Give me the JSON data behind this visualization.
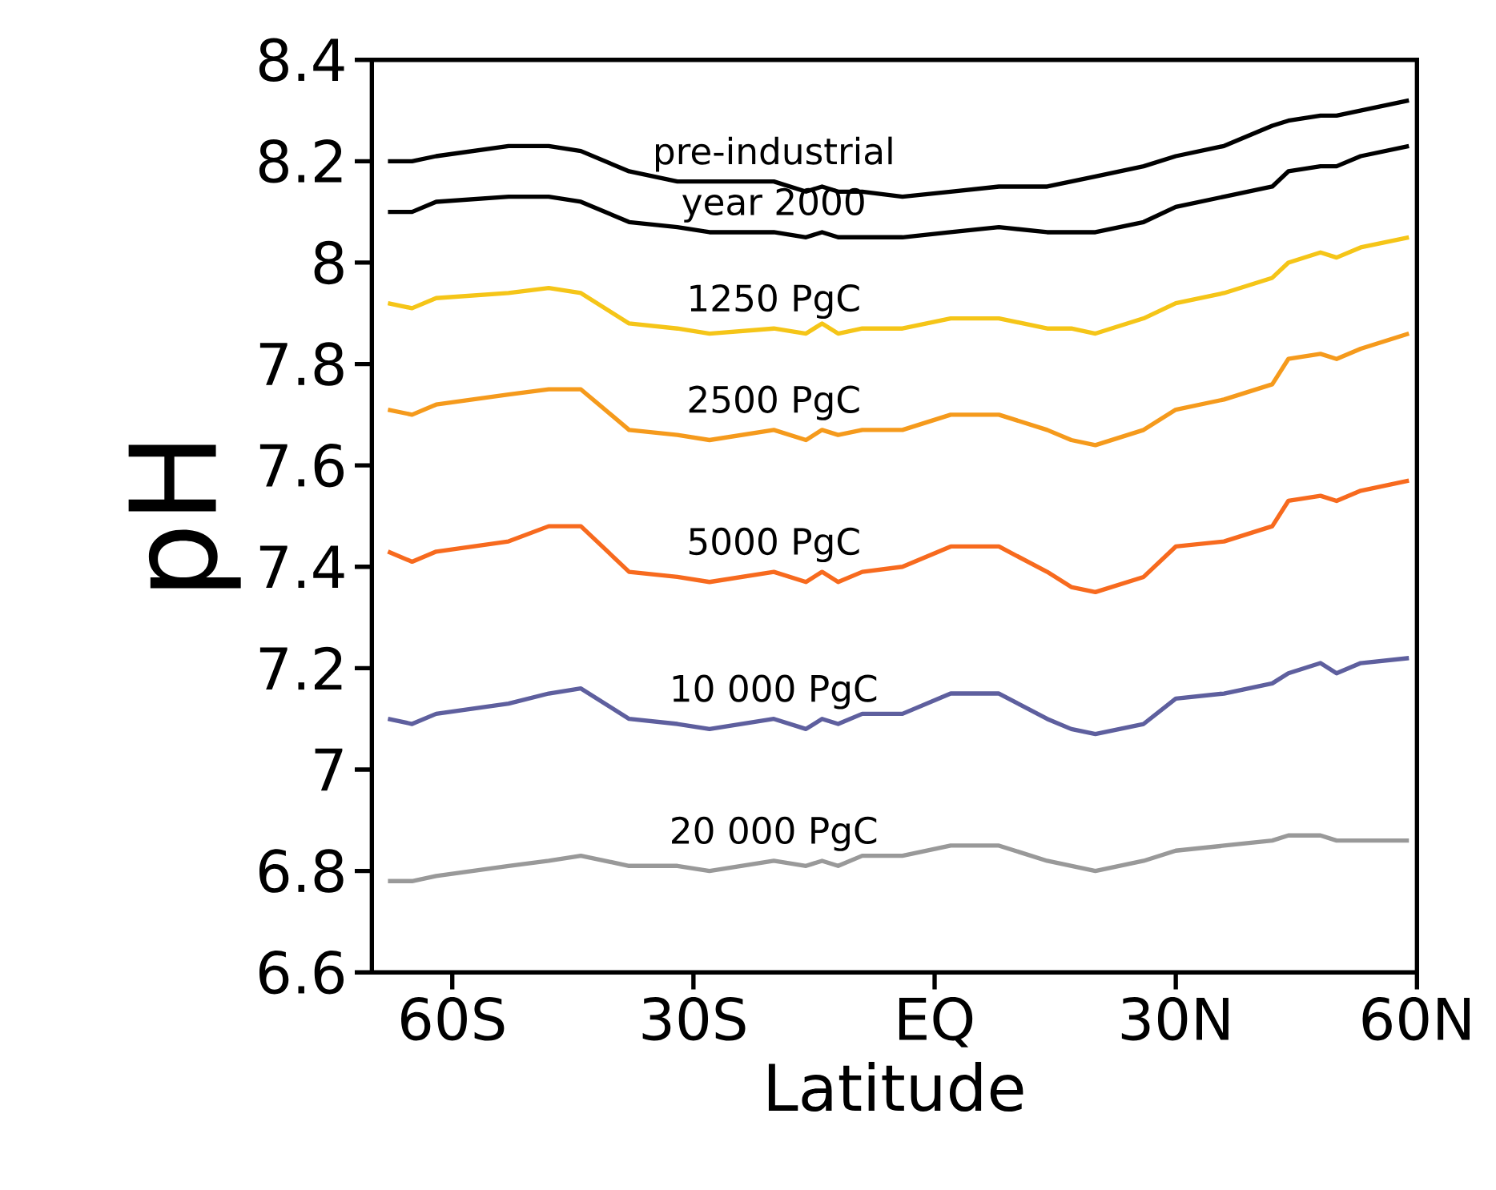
{
  "chart_data": {
    "type": "line",
    "xlabel": "Latitude",
    "ylabel": "pH",
    "x": [
      -68,
      -65,
      -62,
      -53,
      -48,
      -44,
      -38,
      -32,
      -28,
      -20,
      -16,
      -14,
      -12,
      -9,
      -4,
      2,
      8,
      14,
      17,
      20,
      26,
      30,
      36,
      42,
      44,
      48,
      50,
      53,
      59
    ],
    "xlim": [
      -70,
      60
    ],
    "ylim": [
      6.6,
      8.4
    ],
    "xticks": [
      {
        "value": -60,
        "label": "60S"
      },
      {
        "value": -30,
        "label": "30S"
      },
      {
        "value": 0,
        "label": "EQ"
      },
      {
        "value": 30,
        "label": "30N"
      },
      {
        "value": 60,
        "label": "60N"
      }
    ],
    "yticks": [
      6.6,
      6.8,
      7,
      7.2,
      7.4,
      7.6,
      7.8,
      8,
      8.2,
      8.4
    ],
    "series": [
      {
        "name": "pre-industrial",
        "color": "#000000",
        "values": [
          8.2,
          8.2,
          8.21,
          8.23,
          8.23,
          8.22,
          8.18,
          8.16,
          8.16,
          8.16,
          8.14,
          8.15,
          8.14,
          8.14,
          8.13,
          8.14,
          8.15,
          8.15,
          8.16,
          8.17,
          8.19,
          8.21,
          8.23,
          8.27,
          8.28,
          8.29,
          8.29,
          8.3,
          8.32
        ]
      },
      {
        "name": "year 2000",
        "color": "#000000",
        "values": [
          8.1,
          8.1,
          8.12,
          8.13,
          8.13,
          8.12,
          8.08,
          8.07,
          8.06,
          8.06,
          8.05,
          8.06,
          8.05,
          8.05,
          8.05,
          8.06,
          8.07,
          8.06,
          8.06,
          8.06,
          8.08,
          8.11,
          8.13,
          8.15,
          8.18,
          8.19,
          8.19,
          8.21,
          8.23
        ]
      },
      {
        "name": "1250 PgC",
        "color": "#f5c518",
        "values": [
          7.92,
          7.91,
          7.93,
          7.94,
          7.95,
          7.94,
          7.88,
          7.87,
          7.86,
          7.87,
          7.86,
          7.88,
          7.86,
          7.87,
          7.87,
          7.89,
          7.89,
          7.87,
          7.87,
          7.86,
          7.89,
          7.92,
          7.94,
          7.97,
          8.0,
          8.02,
          8.01,
          8.03,
          8.05
        ]
      },
      {
        "name": "2500 PgC",
        "color": "#f59a1c",
        "values": [
          7.71,
          7.7,
          7.72,
          7.74,
          7.75,
          7.75,
          7.67,
          7.66,
          7.65,
          7.67,
          7.65,
          7.67,
          7.66,
          7.67,
          7.67,
          7.7,
          7.7,
          7.67,
          7.65,
          7.64,
          7.67,
          7.71,
          7.73,
          7.76,
          7.81,
          7.82,
          7.81,
          7.83,
          7.86
        ]
      },
      {
        "name": "5000 PgC",
        "color": "#f76a1e",
        "values": [
          7.43,
          7.41,
          7.43,
          7.45,
          7.48,
          7.48,
          7.39,
          7.38,
          7.37,
          7.39,
          7.37,
          7.39,
          7.37,
          7.39,
          7.4,
          7.44,
          7.44,
          7.39,
          7.36,
          7.35,
          7.38,
          7.44,
          7.45,
          7.48,
          7.53,
          7.54,
          7.53,
          7.55,
          7.57
        ]
      },
      {
        "name": "10 000 PgC",
        "color": "#5e5f9e",
        "values": [
          7.1,
          7.09,
          7.11,
          7.13,
          7.15,
          7.16,
          7.1,
          7.09,
          7.08,
          7.1,
          7.08,
          7.1,
          7.09,
          7.11,
          7.11,
          7.15,
          7.15,
          7.1,
          7.08,
          7.07,
          7.09,
          7.14,
          7.15,
          7.17,
          7.19,
          7.21,
          7.19,
          7.21,
          7.22
        ]
      },
      {
        "name": "20 000 PgC",
        "color": "#999999",
        "values": [
          6.78,
          6.78,
          6.79,
          6.81,
          6.82,
          6.83,
          6.81,
          6.81,
          6.8,
          6.82,
          6.81,
          6.82,
          6.81,
          6.83,
          6.83,
          6.85,
          6.85,
          6.82,
          6.81,
          6.8,
          6.82,
          6.84,
          6.85,
          6.86,
          6.87,
          6.87,
          6.86,
          6.86,
          6.86
        ]
      }
    ]
  }
}
